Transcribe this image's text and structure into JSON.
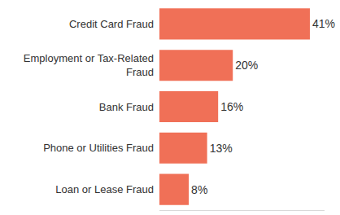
{
  "chart_data": {
    "type": "bar",
    "orientation": "horizontal",
    "categories": [
      "Credit Card Fraud",
      "Employment or Tax-Related Fraud",
      "Bank Fraud",
      "Phone or Utilities Fraud",
      "Loan or Lease Fraud"
    ],
    "values": [
      41,
      20,
      16,
      13,
      8
    ],
    "value_labels": [
      "41%",
      "20%",
      "16%",
      "13%",
      "8%"
    ],
    "color": "#f07057",
    "xlim": [
      0,
      45
    ],
    "xticks": [],
    "grid": false,
    "data_labels": true,
    "tick_labels": "y"
  }
}
